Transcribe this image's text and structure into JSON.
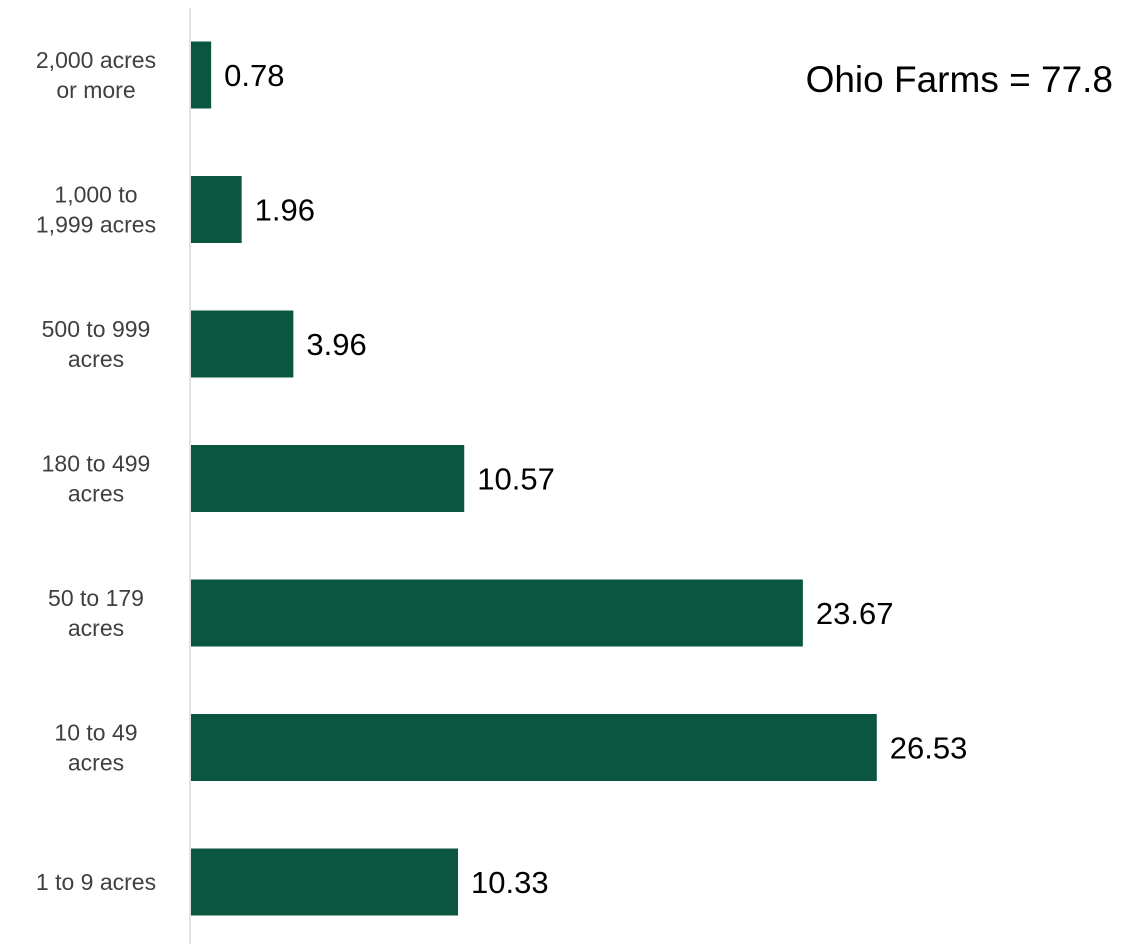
{
  "chart_data": {
    "type": "bar",
    "orientation": "horizontal",
    "categories": [
      [
        "2,000 acres",
        "or more"
      ],
      [
        "1,000 to",
        "1,999 acres"
      ],
      [
        "500 to 999",
        "acres"
      ],
      [
        "180 to 499",
        "acres"
      ],
      [
        "50 to 179",
        "acres"
      ],
      [
        "10 to 49",
        "acres"
      ],
      [
        "1 to 9 acres"
      ]
    ],
    "values": [
      0.78,
      1.96,
      3.96,
      10.57,
      23.67,
      26.53,
      10.33
    ],
    "value_labels": [
      "0.78",
      "1.96",
      "3.96",
      "10.57",
      "23.67",
      "26.53",
      "10.33"
    ],
    "annotation": "Ohio Farms = 77.8",
    "title": "",
    "xlabel": "",
    "ylabel": "",
    "xlim": [
      0,
      30
    ],
    "grid": false,
    "legend": "none",
    "colors": {
      "bar": "#0b5641",
      "axis": "#d9d9d9"
    }
  }
}
